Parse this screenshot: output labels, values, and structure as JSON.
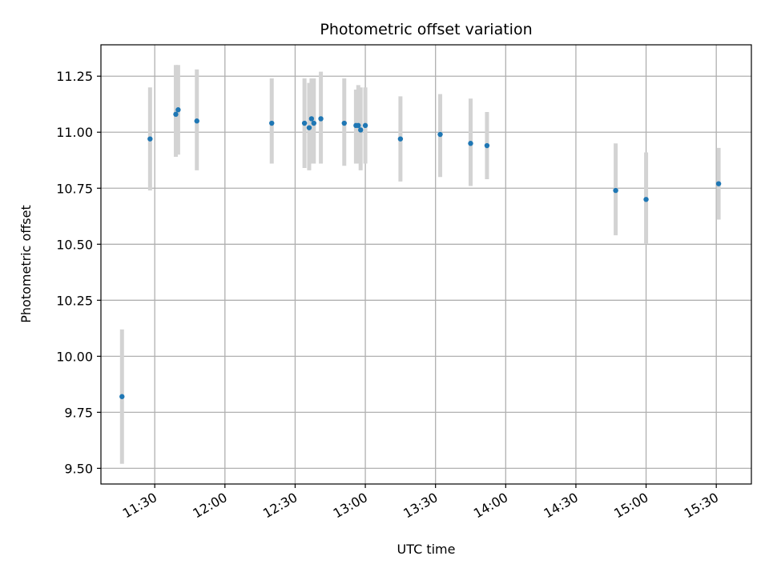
{
  "chart_data": {
    "type": "scatter",
    "title": "Photometric offset variation",
    "xlabel": "UTC time",
    "ylabel": "Photometric offset",
    "x_ticks": [
      "11:30",
      "12:00",
      "12:30",
      "13:00",
      "13:30",
      "14:00",
      "14:30",
      "15:00",
      "15:30"
    ],
    "y_ticks": [
      "9.50",
      "9.75",
      "10.00",
      "10.25",
      "10.50",
      "10.75",
      "11.00",
      "11.25"
    ],
    "xlim": [
      "11:07",
      "15:45"
    ],
    "ylim": [
      9.43,
      11.39
    ],
    "grid": true,
    "marker_color": "#1f77b4",
    "errorbar_color": "#d3d3d3",
    "points": [
      {
        "x": "11:16",
        "y": 9.82,
        "ymin": 9.52,
        "ymax": 10.12
      },
      {
        "x": "11:28",
        "y": 10.97,
        "ymin": 10.74,
        "ymax": 11.2
      },
      {
        "x": "11:39",
        "y": 11.08,
        "ymin": 10.89,
        "ymax": 11.3
      },
      {
        "x": "11:40",
        "y": 11.1,
        "ymin": 10.9,
        "ymax": 11.3
      },
      {
        "x": "11:48",
        "y": 11.05,
        "ymin": 10.83,
        "ymax": 11.28
      },
      {
        "x": "12:20",
        "y": 11.04,
        "ymin": 10.86,
        "ymax": 11.24
      },
      {
        "x": "12:34",
        "y": 11.04,
        "ymin": 10.84,
        "ymax": 11.24
      },
      {
        "x": "12:36",
        "y": 11.02,
        "ymin": 10.83,
        "ymax": 11.22
      },
      {
        "x": "12:37",
        "y": 11.06,
        "ymin": 10.86,
        "ymax": 11.24
      },
      {
        "x": "12:38",
        "y": 11.04,
        "ymin": 10.86,
        "ymax": 11.24
      },
      {
        "x": "12:41",
        "y": 11.06,
        "ymin": 10.86,
        "ymax": 11.27
      },
      {
        "x": "12:51",
        "y": 11.04,
        "ymin": 10.85,
        "ymax": 11.24
      },
      {
        "x": "12:56",
        "y": 11.03,
        "ymin": 10.86,
        "ymax": 11.19
      },
      {
        "x": "12:57",
        "y": 11.03,
        "ymin": 10.86,
        "ymax": 11.21
      },
      {
        "x": "12:58",
        "y": 11.01,
        "ymin": 10.83,
        "ymax": 11.2
      },
      {
        "x": "13:00",
        "y": 11.03,
        "ymin": 10.86,
        "ymax": 11.2
      },
      {
        "x": "13:15",
        "y": 10.97,
        "ymin": 10.78,
        "ymax": 11.16
      },
      {
        "x": "13:32",
        "y": 10.99,
        "ymin": 10.8,
        "ymax": 11.17
      },
      {
        "x": "13:45",
        "y": 10.95,
        "ymin": 10.76,
        "ymax": 11.15
      },
      {
        "x": "13:52",
        "y": 10.94,
        "ymin": 10.79,
        "ymax": 11.09
      },
      {
        "x": "14:47",
        "y": 10.74,
        "ymin": 10.54,
        "ymax": 10.95
      },
      {
        "x": "15:00",
        "y": 10.7,
        "ymin": 10.5,
        "ymax": 10.91
      },
      {
        "x": "15:31",
        "y": 10.77,
        "ymin": 10.61,
        "ymax": 10.93
      }
    ]
  }
}
